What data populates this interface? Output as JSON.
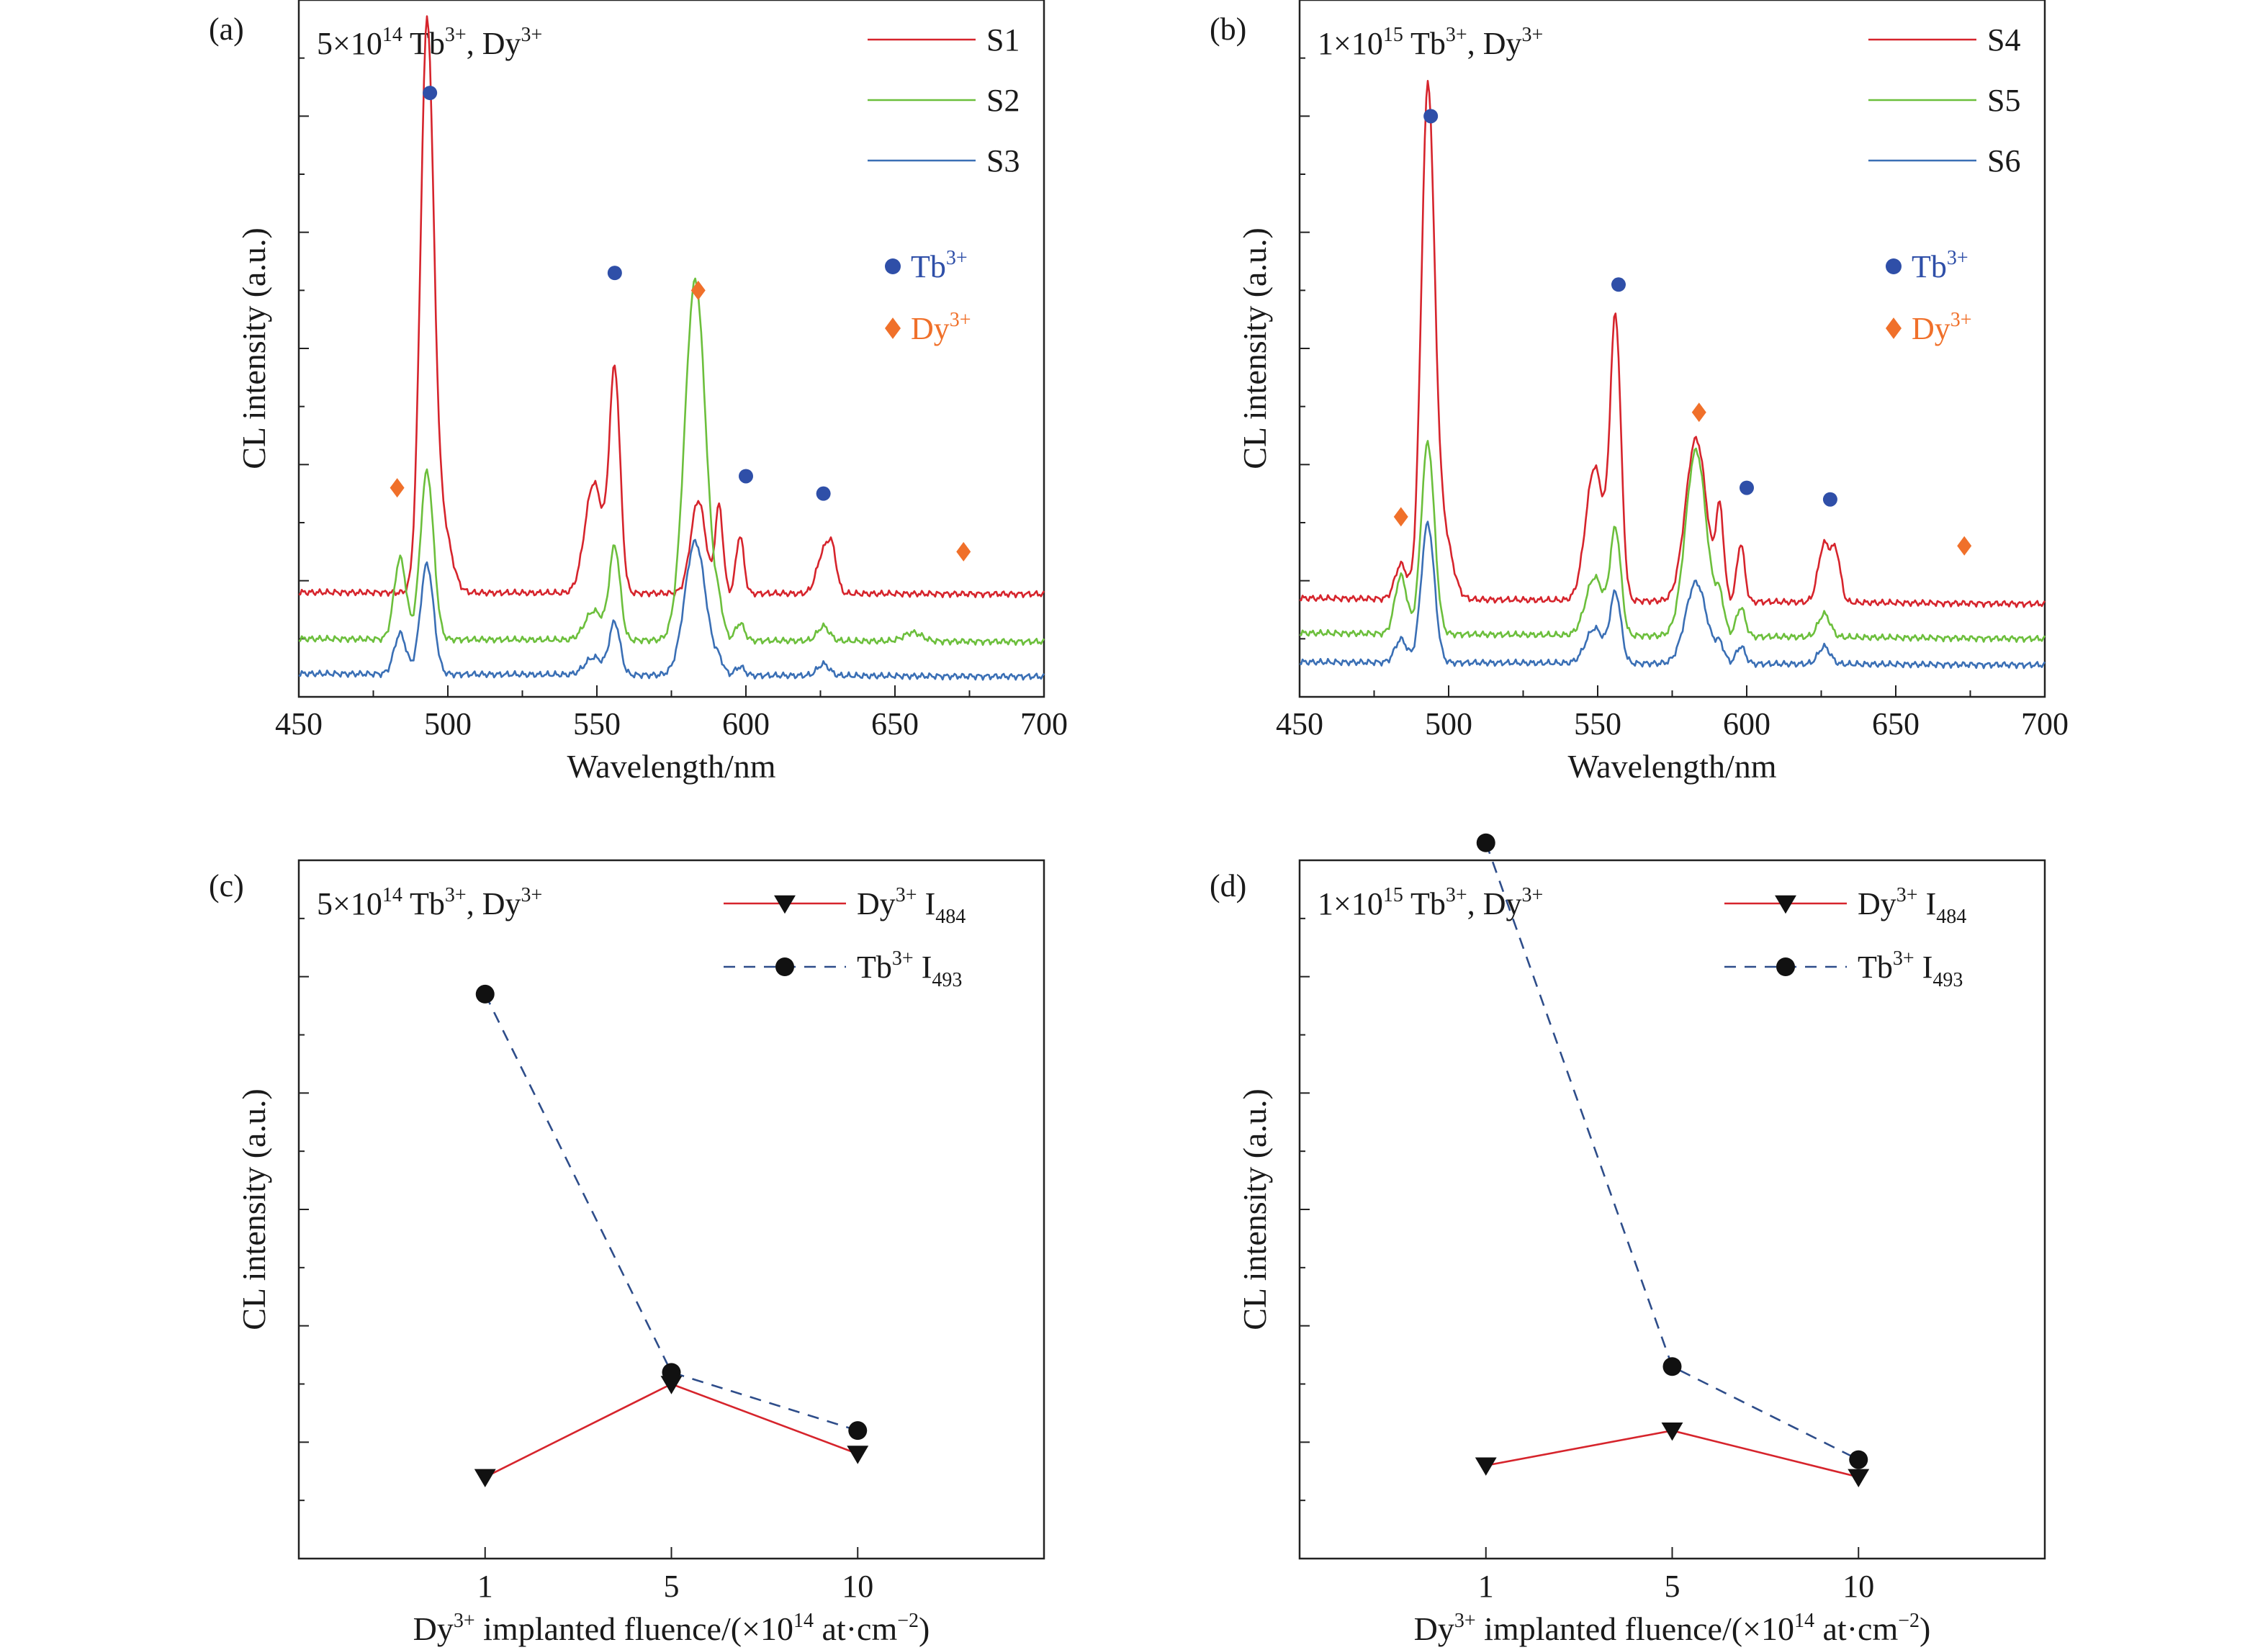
{
  "colors": {
    "red": "#d6242c",
    "green": "#6cbf3c",
    "blue": "#3a6fb5",
    "dark_blue": "#2f4fa8",
    "orange": "#f0702a",
    "black": "#111111",
    "dash_blue": "#2e4d8a"
  },
  "chart_data": [
    {
      "panel": "(a)",
      "type": "line",
      "annotation": {
        "base": "5×10",
        "exp": "14",
        "mid": " Tb",
        "mid_sup": "3+",
        "tail": ", Dy",
        "tail_sup": "3+"
      },
      "xlabel": "Wavelength/nm",
      "ylabel": "CL intensity (a.u.)",
      "xlim": [
        450,
        700
      ],
      "ylim": [
        0,
        12
      ],
      "xticks": [
        450,
        500,
        550,
        600,
        650,
        700
      ],
      "y_tick_labels_shown": false,
      "series": [
        {
          "name": "S1",
          "color": "red",
          "baseline": 1.8,
          "tail": -0.03,
          "peaks": [
            [
              493,
              9.6,
              2.2
            ],
            [
              498,
              1.2,
              3
            ],
            [
              549,
              1.9,
              3
            ],
            [
              556,
              3.8,
              1.8
            ],
            [
              584,
              1.6,
              2.5
            ],
            [
              591,
              1.5,
              1.3
            ],
            [
              598,
              1.0,
              1.3
            ],
            [
              626,
              0.7,
              2.2
            ],
            [
              629,
              0.6,
              1.5
            ]
          ]
        },
        {
          "name": "S2",
          "color": "green",
          "baseline": 1.0,
          "tail": -0.05,
          "peaks": [
            [
              484,
              1.4,
              2
            ],
            [
              493,
              2.9,
              2.2
            ],
            [
              549,
              0.5,
              3
            ],
            [
              556,
              1.6,
              1.8
            ],
            [
              583,
              6.2,
              3.5
            ],
            [
              591,
              0.4,
              1.5
            ],
            [
              598,
              0.3,
              1.5
            ],
            [
              626,
              0.25,
              2
            ],
            [
              656,
              0.15,
              3
            ]
          ]
        },
        {
          "name": "S3",
          "color": "blue",
          "baseline": 0.4,
          "tail": -0.05,
          "peaks": [
            [
              484,
              0.7,
              2
            ],
            [
              493,
              1.9,
              2.2
            ],
            [
              549,
              0.3,
              3
            ],
            [
              556,
              0.9,
              1.8
            ],
            [
              583,
              2.3,
              3.5
            ],
            [
              591,
              0.2,
              1.5
            ],
            [
              598,
              0.15,
              1.5
            ],
            [
              626,
              0.2,
              2
            ]
          ]
        }
      ],
      "markers": [
        {
          "label": "Tb3+",
          "x": 494,
          "y": 10.4,
          "kind": "circle"
        },
        {
          "label": "Tb3+",
          "x": 556,
          "y": 7.3,
          "kind": "circle"
        },
        {
          "label": "Tb3+",
          "x": 600,
          "y": 3.8,
          "kind": "circle"
        },
        {
          "label": "Tb3+",
          "x": 626,
          "y": 3.5,
          "kind": "circle"
        },
        {
          "label": "Dy3+",
          "x": 483,
          "y": 3.6,
          "kind": "diamond"
        },
        {
          "label": "Dy3+",
          "x": 584,
          "y": 7.0,
          "kind": "diamond"
        },
        {
          "label": "Dy3+",
          "x": 673,
          "y": 2.5,
          "kind": "diamond"
        }
      ],
      "marker_legend": [
        {
          "kind": "circle",
          "label": "Tb",
          "sup": "3+",
          "color": "dark_blue"
        },
        {
          "kind": "diamond",
          "label": "Dy",
          "sup": "3+",
          "color": "orange"
        }
      ]
    },
    {
      "panel": "(b)",
      "type": "line",
      "annotation": {
        "base": "1×10",
        "exp": "15",
        "mid": " Tb",
        "mid_sup": "3+",
        "tail": ", Dy",
        "tail_sup": "3+"
      },
      "xlabel": "Wavelength/nm",
      "ylabel": "CL intensity (a.u.)",
      "xlim": [
        450,
        700
      ],
      "ylim": [
        0,
        12
      ],
      "xticks": [
        450,
        500,
        550,
        600,
        650,
        700
      ],
      "y_tick_labels_shown": false,
      "series": [
        {
          "name": "S4",
          "color": "red",
          "baseline": 1.7,
          "tail": -0.1,
          "peaks": [
            [
              484,
              0.6,
              2
            ],
            [
              493,
              8.6,
              2.2
            ],
            [
              498,
              1.2,
              3
            ],
            [
              549,
              2.3,
              3
            ],
            [
              556,
              4.8,
              1.8
            ],
            [
              583,
              2.8,
              3.5
            ],
            [
              591,
              1.5,
              1.3
            ],
            [
              598,
              1.0,
              1.3
            ],
            [
              626,
              1.0,
              2
            ],
            [
              630,
              0.8,
              1.5
            ]
          ]
        },
        {
          "name": "S5",
          "color": "green",
          "baseline": 1.1,
          "tail": -0.1,
          "peaks": [
            [
              484,
              1.0,
              2
            ],
            [
              493,
              3.3,
              2.2
            ],
            [
              549,
              1.0,
              3
            ],
            [
              556,
              1.8,
              1.8
            ],
            [
              583,
              3.2,
              3.5
            ],
            [
              591,
              0.6,
              1.5
            ],
            [
              598,
              0.5,
              1.5
            ],
            [
              626,
              0.4,
              2
            ]
          ]
        },
        {
          "name": "S6",
          "color": "blue",
          "baseline": 0.6,
          "tail": -0.05,
          "peaks": [
            [
              484,
              0.4,
              2
            ],
            [
              493,
              2.4,
              2.2
            ],
            [
              549,
              0.6,
              3
            ],
            [
              556,
              1.2,
              1.8
            ],
            [
              583,
              1.4,
              3.5
            ],
            [
              591,
              0.3,
              1.5
            ],
            [
              598,
              0.3,
              1.5
            ],
            [
              626,
              0.3,
              2
            ]
          ]
        }
      ],
      "markers": [
        {
          "label": "Tb3+",
          "x": 494,
          "y": 10.0,
          "kind": "circle"
        },
        {
          "label": "Tb3+",
          "x": 557,
          "y": 7.1,
          "kind": "circle"
        },
        {
          "label": "Tb3+",
          "x": 600,
          "y": 3.6,
          "kind": "circle"
        },
        {
          "label": "Tb3+",
          "x": 628,
          "y": 3.4,
          "kind": "circle"
        },
        {
          "label": "Dy3+",
          "x": 484,
          "y": 3.1,
          "kind": "diamond"
        },
        {
          "label": "Dy3+",
          "x": 584,
          "y": 4.9,
          "kind": "diamond"
        },
        {
          "label": "Dy3+",
          "x": 673,
          "y": 2.6,
          "kind": "diamond"
        }
      ],
      "marker_legend": [
        {
          "kind": "circle",
          "label": "Tb",
          "sup": "3+",
          "color": "dark_blue"
        },
        {
          "kind": "diamond",
          "label": "Dy",
          "sup": "3+",
          "color": "orange"
        }
      ]
    },
    {
      "panel": "(c)",
      "type": "line",
      "annotation": {
        "base": "5×10",
        "exp": "14",
        "mid": " Tb",
        "mid_sup": "3+",
        "tail": ", Dy",
        "tail_sup": "3+"
      },
      "xlabel": {
        "pre": "Dy",
        "pre_sup": "3+",
        "main": " implanted fluence/(×10",
        "exp": "14",
        "post": " at·cm",
        "post_sup": "−2",
        "end": ")"
      },
      "ylabel": "CL intensity (a.u.)",
      "categories": [
        "1",
        "5",
        "10"
      ],
      "ylim": [
        0,
        12
      ],
      "y_tick_labels_shown": false,
      "series": [
        {
          "name": "Dy3+ I484",
          "legend": {
            "label": "Dy",
            "sup": "3+",
            "tail": " I",
            "sub": "484"
          },
          "color": "red",
          "dash": false,
          "marker": "triangle-down",
          "values": [
            1.4,
            3.0,
            1.8
          ]
        },
        {
          "name": "Tb3+ I493",
          "legend": {
            "label": "Tb",
            "sup": "3+",
            "tail": " I",
            "sub": "493"
          },
          "color": "dash_blue",
          "dash": true,
          "marker": "circle",
          "values": [
            9.7,
            3.2,
            2.2
          ]
        }
      ]
    },
    {
      "panel": "(d)",
      "type": "line",
      "annotation": {
        "base": "1×10",
        "exp": "15",
        "mid": " Tb",
        "mid_sup": "3+",
        "tail": ", Dy",
        "tail_sup": "3+"
      },
      "xlabel": {
        "pre": "Dy",
        "pre_sup": "3+",
        "main": " implanted fluence/(×10",
        "exp": "14",
        "post": " at·cm",
        "post_sup": "−2",
        "end": ")"
      },
      "ylabel": "CL intensity (a.u.)",
      "categories": [
        "1",
        "5",
        "10"
      ],
      "ylim": [
        0,
        12
      ],
      "y_tick_labels_shown": false,
      "series": [
        {
          "name": "Dy3+ I484",
          "legend": {
            "label": "Dy",
            "sup": "3+",
            "tail": " I",
            "sub": "484"
          },
          "color": "red",
          "dash": false,
          "marker": "triangle-down",
          "values": [
            1.6,
            2.2,
            1.4
          ]
        },
        {
          "name": "Tb3+ I493",
          "legend": {
            "label": "Tb",
            "sup": "3+",
            "tail": " I",
            "sub": "493"
          },
          "color": "dash_blue",
          "dash": true,
          "marker": "circle",
          "values": [
            12.3,
            3.3,
            1.7
          ]
        }
      ]
    }
  ]
}
